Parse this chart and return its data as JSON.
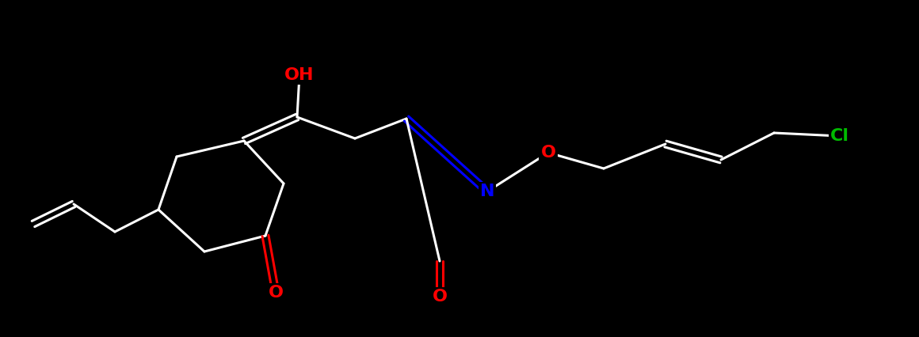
{
  "bg_color": "#000000",
  "fig_width": 11.6,
  "fig_height": 4.26,
  "dpi": 100,
  "bond_color": "#ffffff",
  "atom_colors": {
    "O": "#ff0000",
    "N": "#0000ff",
    "Cl": "#00bb00",
    "C": "#ffffff"
  },
  "lw": 2.2,
  "font_size": 16,
  "font_weight": "bold"
}
